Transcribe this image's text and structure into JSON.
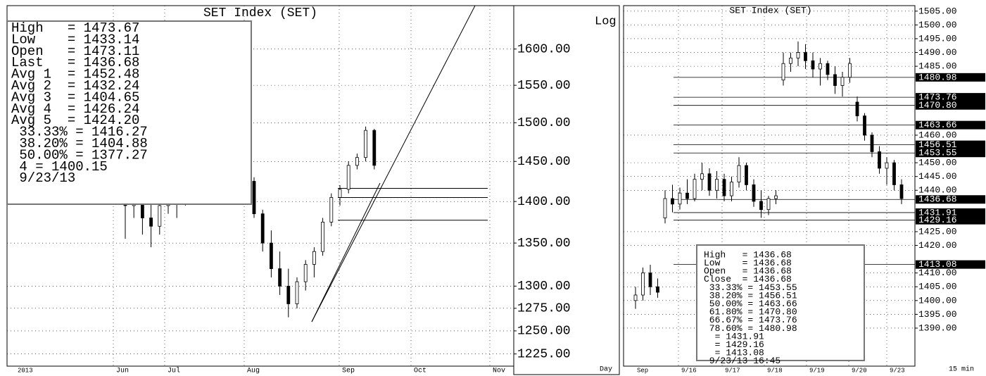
{
  "chart_data": [
    {
      "type": "candlestick",
      "title": "SET Index (SET)",
      "log_scale": true,
      "axis_caption": "Log",
      "period_caption": "Day",
      "year_label": "2013",
      "x_labels": [
        "Jun",
        "Jul",
        "Aug",
        "Sep",
        "Oct",
        "Nov"
      ],
      "categories": [
        null,
        null,
        null,
        null,
        null,
        null,
        null,
        null,
        null,
        null,
        null,
        null,
        null,
        null,
        null,
        null,
        null,
        null,
        null,
        null,
        null,
        null,
        null,
        null,
        null,
        null,
        null,
        null,
        null,
        null
      ],
      "open": [
        1400,
        1395,
        1410,
        1380,
        1370,
        1395,
        1420,
        1400,
        1430,
        1425,
        1445,
        1440,
        1455,
        1448,
        1450,
        1425,
        1385,
        1350,
        1320,
        1300,
        1280,
        1305,
        1325,
        1340,
        1375,
        1405,
        1415,
        1445,
        1455,
        1490
      ],
      "high": [
        1415,
        1420,
        1425,
        1405,
        1400,
        1430,
        1435,
        1440,
        1445,
        1450,
        1455,
        1460,
        1462,
        1458,
        1455,
        1430,
        1390,
        1365,
        1340,
        1320,
        1310,
        1330,
        1345,
        1380,
        1410,
        1420,
        1450,
        1460,
        1495,
        1492
      ],
      "low": [
        1355,
        1380,
        1360,
        1345,
        1360,
        1385,
        1380,
        1395,
        1415,
        1420,
        1430,
        1435,
        1440,
        1435,
        1420,
        1380,
        1340,
        1310,
        1290,
        1265,
        1275,
        1295,
        1310,
        1335,
        1370,
        1395,
        1410,
        1440,
        1450,
        1440
      ],
      "close": [
        1395,
        1410,
        1380,
        1370,
        1395,
        1420,
        1400,
        1430,
        1425,
        1445,
        1440,
        1455,
        1448,
        1450,
        1425,
        1385,
        1350,
        1320,
        1300,
        1280,
        1305,
        1325,
        1340,
        1375,
        1405,
        1415,
        1445,
        1455,
        1490,
        1445
      ],
      "level_lines": [
        1416.27,
        1404.88,
        1377.27
      ],
      "ylim": [
        1212,
        1662
      ],
      "yticks": [
        {
          "value": 1600,
          "label": "1600.00"
        },
        {
          "value": 1550,
          "label": "1550.00"
        },
        {
          "value": 1500,
          "label": "1500.00"
        },
        {
          "value": 1450,
          "label": "1450.00"
        },
        {
          "value": 1400,
          "label": "1400.00"
        },
        {
          "value": 1350,
          "label": "1350.00"
        },
        {
          "value": 1300,
          "label": "1300.00"
        },
        {
          "value": 1275,
          "label": "1275.00"
        },
        {
          "value": 1250,
          "label": "1250.00"
        },
        {
          "value": 1225,
          "label": "1225.00"
        }
      ],
      "info_lines": [
        "High   = 1473.67",
        "Low    = 1433.14",
        "Open   = 1473.11",
        "Last   = 1436.68",
        "Avg 1  = 1452.48",
        "Avg 2  = 1432.24",
        "Avg 3  = 1404.65",
        "Avg 4  = 1426.24",
        "Avg 5  = 1424.20",
        " 33.33% = 1416.27",
        " 38.20% = 1404.88",
        " 50.00% = 1377.27",
        " 4 = 1400.15",
        " 9/23/13"
      ]
    },
    {
      "type": "candlestick",
      "title": "SET Index (SET)",
      "log_scale": false,
      "period_caption": "15 min",
      "year_label": "Sep",
      "x_labels": [
        "9/16",
        "9/17",
        "9/18",
        "9/19",
        "9/20",
        "9/23"
      ],
      "categories": [
        null,
        null,
        null,
        null,
        null,
        null,
        null,
        null,
        null,
        null,
        null,
        null,
        null,
        null,
        null,
        null,
        null,
        null,
        null,
        null,
        null,
        null,
        null,
        null,
        null,
        null,
        null,
        null,
        null,
        null,
        null,
        null,
        null,
        null,
        null,
        null,
        null
      ],
      "open": [
        1400,
        1402,
        1410,
        1405,
        1430,
        1437,
        1435,
        1439,
        1437,
        1444,
        1446,
        1440,
        1444,
        1438,
        1443,
        1449,
        1442,
        1436,
        1433,
        1437,
        1480,
        1486,
        1488,
        1490,
        1487,
        1484,
        1486,
        1482,
        1478,
        1481,
        1472,
        1467,
        1460,
        1454,
        1448,
        1450,
        1442
      ],
      "high": [
        1405,
        1412,
        1413,
        1408,
        1440,
        1442,
        1441,
        1444,
        1446,
        1450,
        1448,
        1447,
        1446,
        1445,
        1452,
        1450,
        1444,
        1440,
        1438,
        1440,
        1490,
        1490,
        1494,
        1493,
        1490,
        1488,
        1487,
        1485,
        1483,
        1488,
        1474,
        1468,
        1461,
        1456,
        1452,
        1451,
        1444
      ],
      "low": [
        1397,
        1400,
        1402,
        1401,
        1428,
        1432,
        1433,
        1435,
        1436,
        1440,
        1438,
        1437,
        1436,
        1436,
        1441,
        1440,
        1434,
        1430,
        1431,
        1435,
        1478,
        1483,
        1485,
        1484,
        1481,
        1478,
        1480,
        1475,
        1474,
        1479,
        1465,
        1458,
        1452,
        1446,
        1442,
        1440,
        1435
      ],
      "close": [
        1402,
        1410,
        1405,
        1403,
        1437,
        1435,
        1439,
        1437,
        1444,
        1446,
        1440,
        1444,
        1438,
        1443,
        1449,
        1442,
        1436,
        1433,
        1437,
        1438,
        1486,
        1488,
        1490,
        1487,
        1484,
        1486,
        1482,
        1478,
        1481,
        1486,
        1467,
        1460,
        1454,
        1448,
        1450,
        1442,
        1437
      ],
      "ylim": [
        1376.2,
        1507
      ],
      "yticks": [
        {
          "value": 1505,
          "label": "1505.00"
        },
        {
          "value": 1500,
          "label": "1500.00"
        },
        {
          "value": 1495,
          "label": "1495.00"
        },
        {
          "value": 1490,
          "label": "1490.00"
        },
        {
          "value": 1485,
          "label": "1485.00"
        },
        {
          "value": 1460,
          "label": "1460.00"
        },
        {
          "value": 1450,
          "label": "1450.00"
        },
        {
          "value": 1445,
          "label": "1445.00"
        },
        {
          "value": 1440,
          "label": "1440.00"
        },
        {
          "value": 1425,
          "label": "1425.00"
        },
        {
          "value": 1420,
          "label": "1420.00"
        },
        {
          "value": 1410,
          "label": "1410.00"
        },
        {
          "value": 1405,
          "label": "1405.00"
        },
        {
          "value": 1400,
          "label": "1400.00"
        },
        {
          "value": 1395,
          "label": "1395.00"
        },
        {
          "value": 1390,
          "label": "1390.00"
        }
      ],
      "highlights": [
        {
          "value": 1480.98,
          "label": "1480.98"
        },
        {
          "value": 1473.76,
          "label": "1473.76"
        },
        {
          "value": 1470.8,
          "label": "1470.80"
        },
        {
          "value": 1463.66,
          "label": "1463.66"
        },
        {
          "value": 1456.51,
          "label": "1456.51"
        },
        {
          "value": 1453.55,
          "label": "1453.55"
        },
        {
          "value": 1436.68,
          "label": "1436.68"
        },
        {
          "value": 1431.91,
          "label": "1431.91"
        },
        {
          "value": 1429.16,
          "label": "1429.16"
        },
        {
          "value": 1413.08,
          "label": "1413.08"
        }
      ],
      "info_lines": [
        "High   = 1436.68",
        "Low    = 1436.68",
        "Open   = 1436.68",
        "Close  = 1436.68",
        " 33.33% = 1453.55",
        " 38.20% = 1456.51",
        " 50.00% = 1463.66",
        " 61.80% = 1470.80",
        " 66.67% = 1473.76",
        " 78.60% = 1480.98",
        "  = 1431.91",
        "  = 1429.16",
        "  = 1413.08",
        " 9/23/13 16:45"
      ]
    }
  ]
}
